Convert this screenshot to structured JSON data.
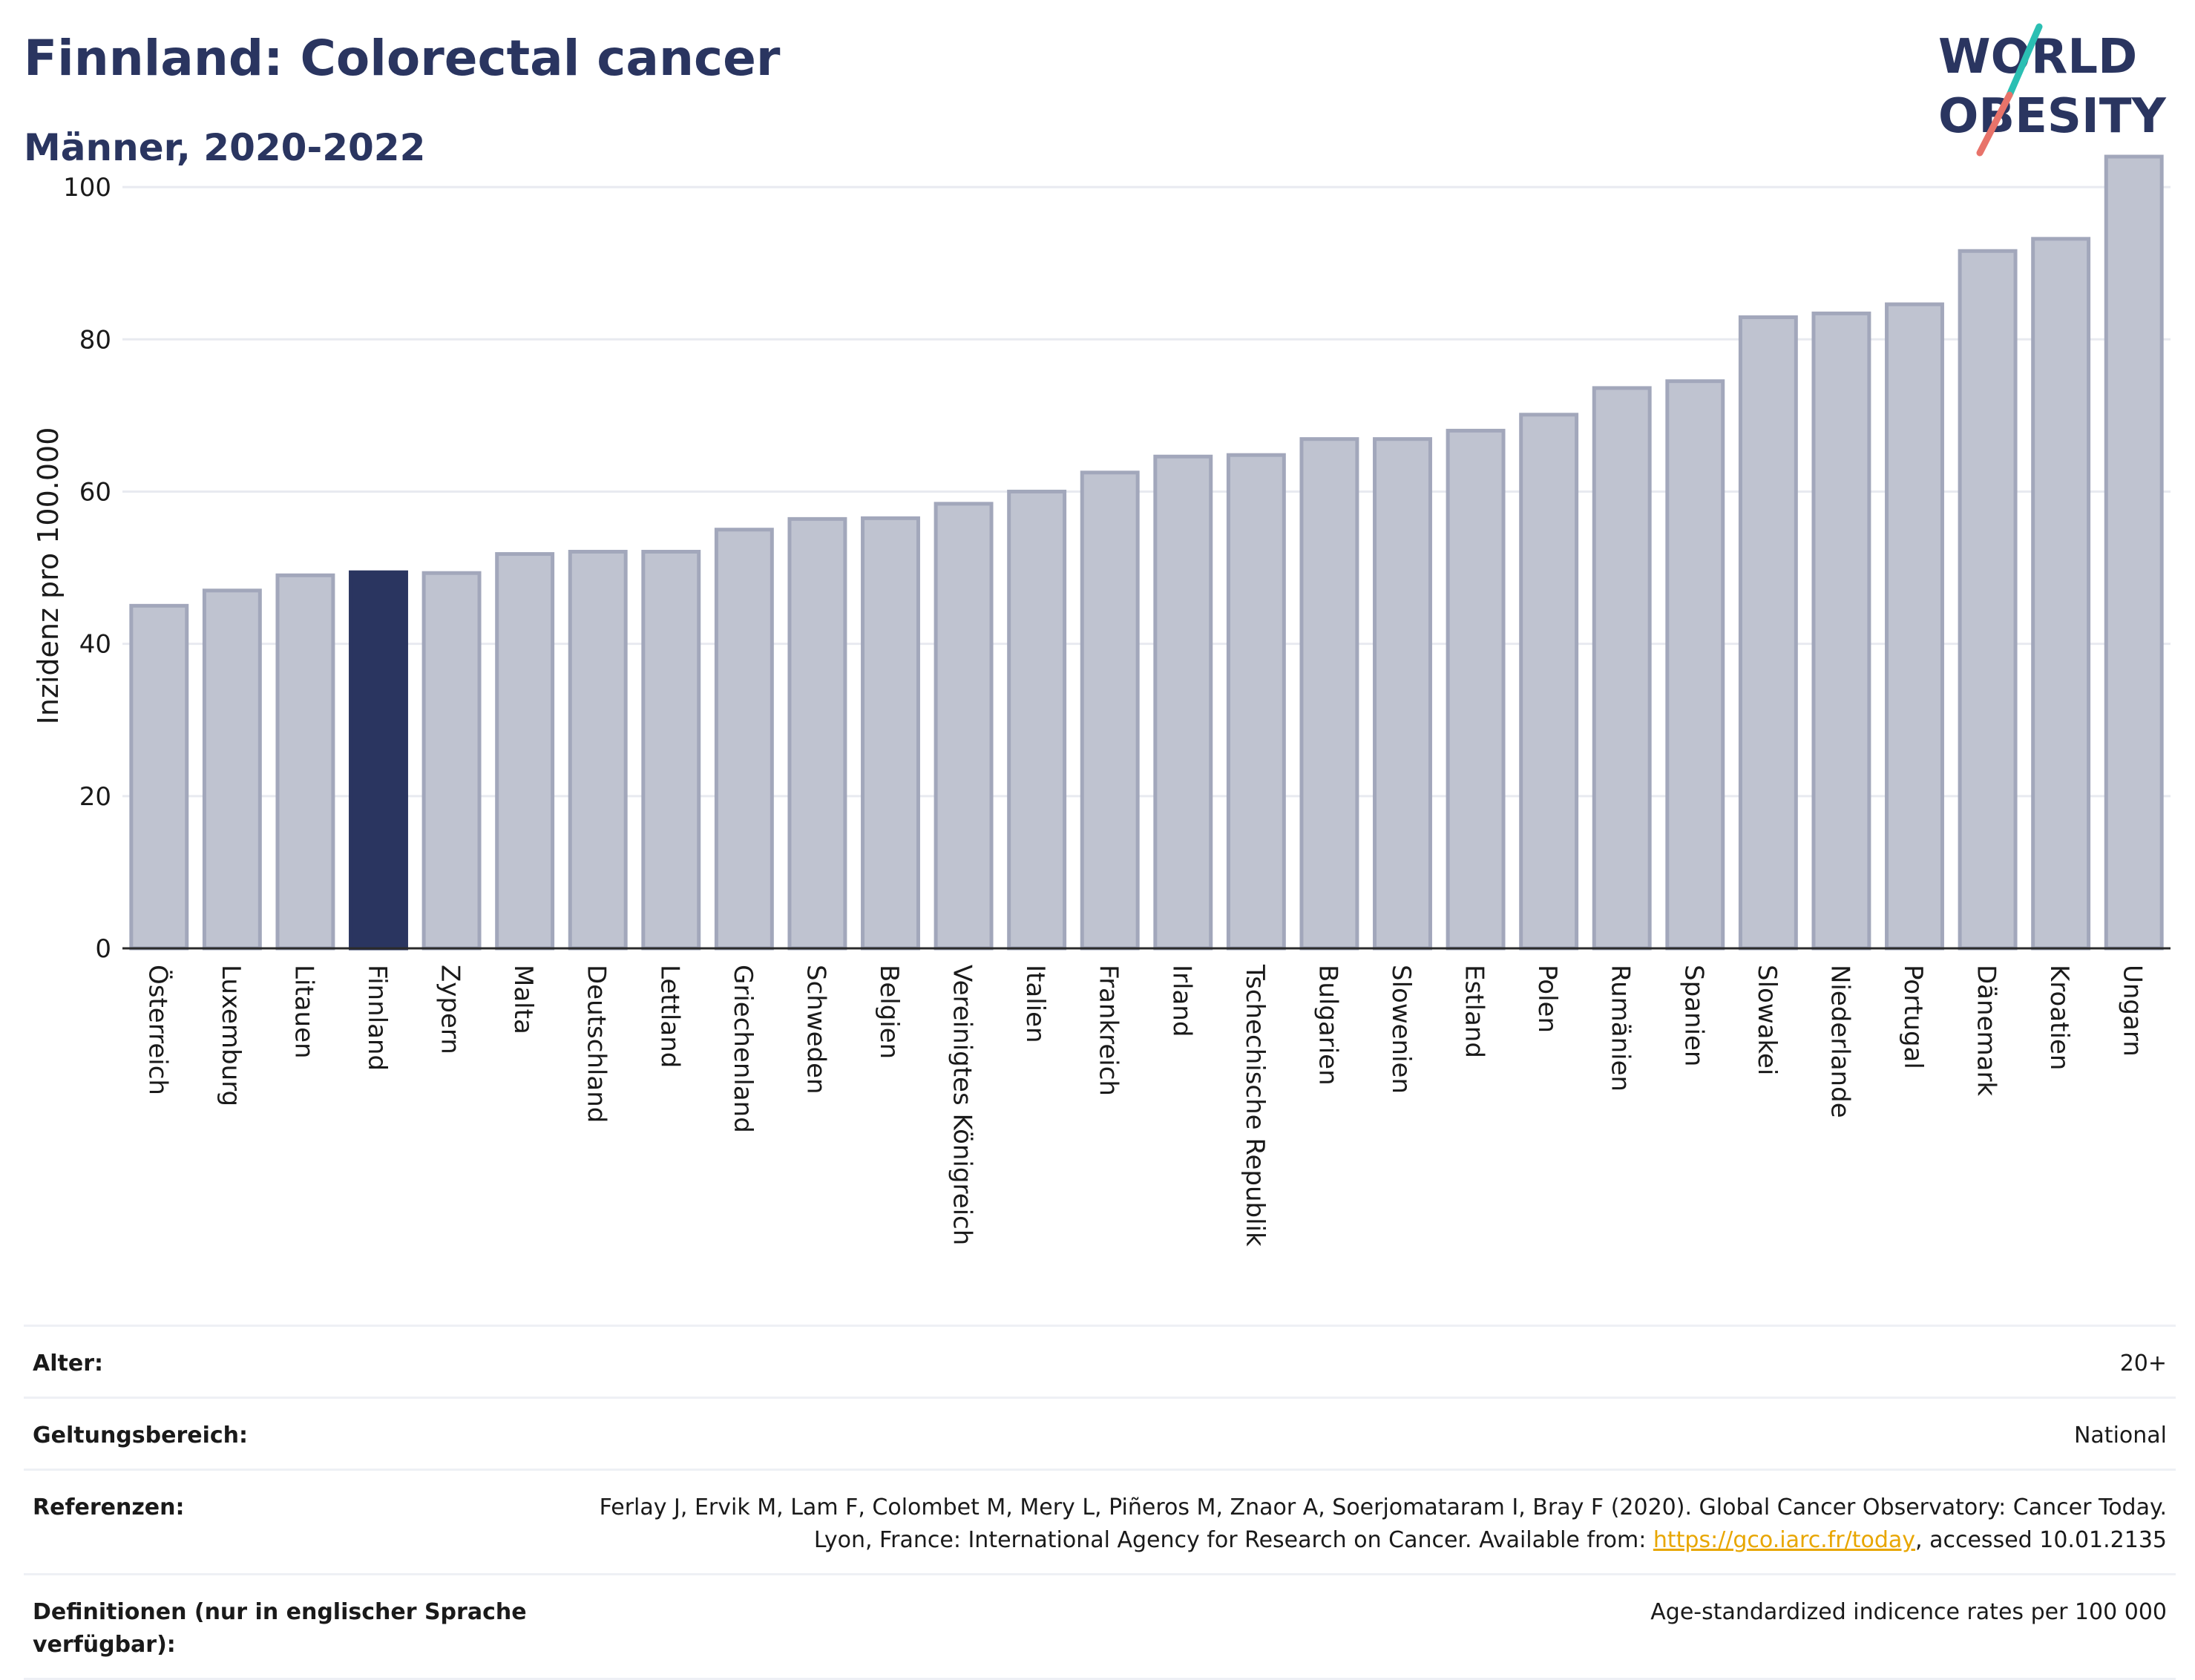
{
  "header": {
    "title": "Finnland: Colorectal cancer",
    "subtitle": "Männer, 2020-2022",
    "logo_line1": "WORLD",
    "logo_line2": "OBESITY"
  },
  "colors": {
    "highlight": "#2a3560",
    "bar_fill": "#bfc3d0",
    "bar_stroke": "#a2a7bb",
    "grid": "#e8eaf0",
    "logo_teal": "#2bbfb3",
    "logo_coral": "#e8736a",
    "link": "#e8a600"
  },
  "chart_data": {
    "type": "bar",
    "categories": [
      "Österreich",
      "Luxemburg",
      "Litauen",
      "Finnland",
      "Zypern",
      "Malta",
      "Deutschland",
      "Lettland",
      "Griechenland",
      "Schweden",
      "Belgien",
      "Vereinigtes Königreich",
      "Italien",
      "Frankreich",
      "Irland",
      "Tschechische Republik",
      "Bulgarien",
      "Slowenien",
      "Estland",
      "Polen",
      "Rumänien",
      "Spanien",
      "Slowakei",
      "Niederlande",
      "Portugal",
      "Dänemark",
      "Kroatien",
      "Ungarn"
    ],
    "values": [
      45.0,
      47.0,
      49.0,
      49.4,
      49.3,
      51.8,
      52.1,
      52.1,
      55.0,
      56.4,
      56.5,
      58.4,
      60.0,
      62.5,
      64.6,
      64.8,
      66.9,
      66.9,
      68.0,
      70.1,
      73.6,
      74.5,
      82.9,
      83.4,
      84.6,
      91.6,
      93.2,
      104.0
    ],
    "highlight": "Finnland",
    "title": "Finnland: Colorectal cancer",
    "subtitle": "Männer, 2020-2022",
    "xlabel": "",
    "ylabel": "Inzidenz pro 100.000",
    "ylim": [
      0,
      108
    ],
    "yticks": [
      0,
      20,
      40,
      60,
      80,
      100
    ],
    "grid": true
  },
  "info": [
    {
      "label": "Alter:",
      "value": "20+"
    },
    {
      "label": "Geltungsbereich:",
      "value": "National"
    },
    {
      "label": "Referenzen:",
      "value_pre": "Ferlay J, Ervik M, Lam F, Colombet M, Mery L, Piñeros M, Znaor A, Soerjomataram I, Bray F (2020). Global Cancer Observatory: Cancer Today. Lyon, France: International Agency for Research on Cancer. Available from: ",
      "link": "https://gco.iarc.fr/today",
      "value_post": ", accessed 10.01.2135"
    },
    {
      "label": "Definitionen (nur in englischer Sprache verfügbar):",
      "value": "Age-standardized indicence rates per 100 000"
    }
  ]
}
